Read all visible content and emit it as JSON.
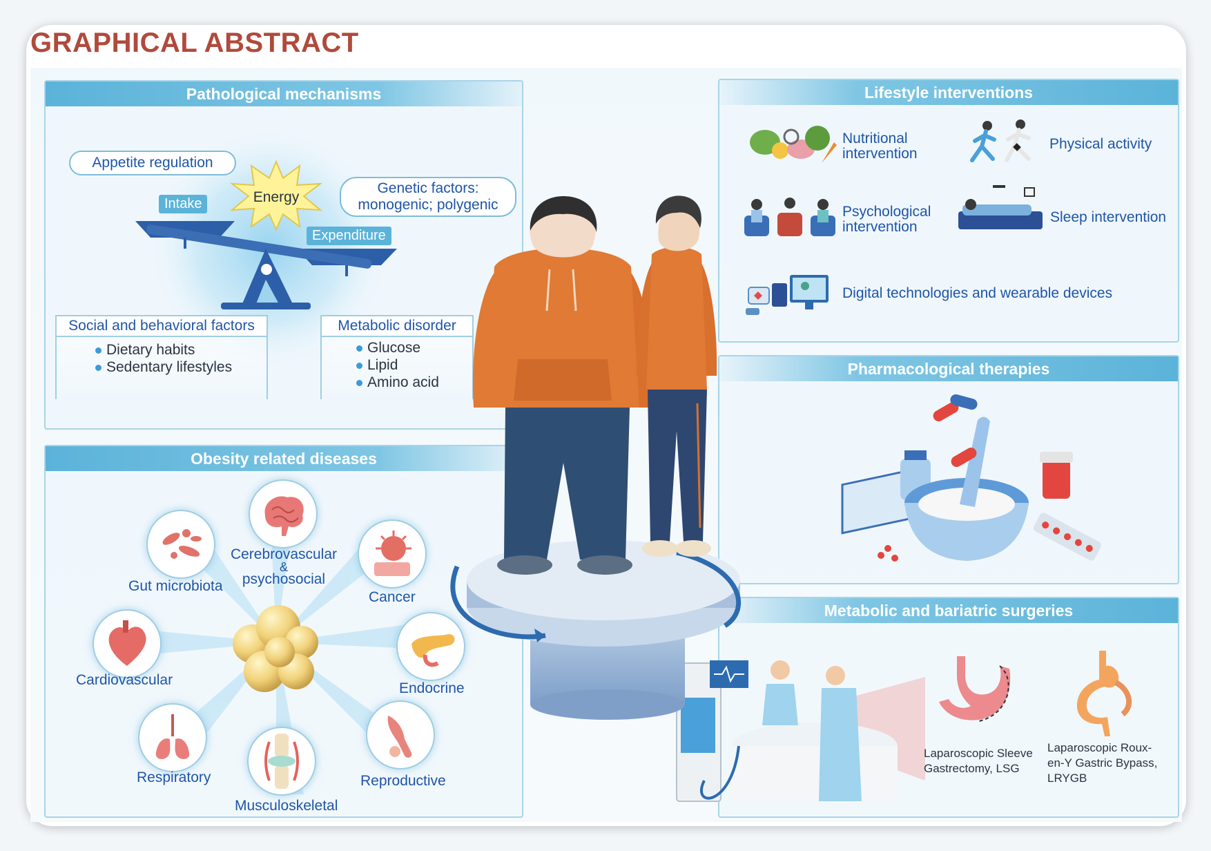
{
  "title": "GRAPHICAL ABSTRACT",
  "colors": {
    "accent_red": "#b04a3c",
    "header_blue": "#5bb3d9",
    "text_blue": "#1f55a8",
    "hoodie_orange": "#e07a35"
  },
  "pathological": {
    "header": "Pathological mechanisms",
    "appetite": "Appetite regulation",
    "intake": "Intake",
    "energy": "Energy",
    "expenditure": "Expenditure",
    "genetic_line1": "Genetic factors:",
    "genetic_line2": "monogenic; polygenic",
    "social": {
      "title": "Social and behavioral factors",
      "items": [
        "Dietary habits",
        "Sedentary lifestyles"
      ]
    },
    "metabolic": {
      "title": "Metabolic disorder",
      "items": [
        "Glucose",
        "Lipid",
        "Amino acid"
      ]
    }
  },
  "diseases": {
    "header": "Obesity related diseases",
    "gut": "Gut microbiota",
    "cerebro1": "Cerebrovascular",
    "cerebro2": "&",
    "cerebro3": "psychosocial",
    "cancer": "Cancer",
    "cardio": "Cardiovascular",
    "endocrine": "Endocrine",
    "respiratory": "Respiratory",
    "musculo": "Musculoskeletal",
    "reproductive": "Reproductive"
  },
  "lifestyle": {
    "header": "Lifestyle interventions",
    "nutritional1": "Nutritional",
    "nutritional2": "intervention",
    "physical": "Physical activity",
    "psych1": "Psychological",
    "psych2": "intervention",
    "sleep": "Sleep intervention",
    "digital": "Digital technologies and wearable devices"
  },
  "pharma": {
    "header": "Pharmacological therapies"
  },
  "surgery": {
    "header": "Metabolic and bariatric surgeries",
    "lsg1": "Laparoscopic Sleeve",
    "lsg2": "Gastrectomy, LSG",
    "lrygb1": "Laparoscopic Roux-",
    "lrygb2": "en-Y Gastric Bypass,",
    "lrygb3": "LRYGB"
  }
}
